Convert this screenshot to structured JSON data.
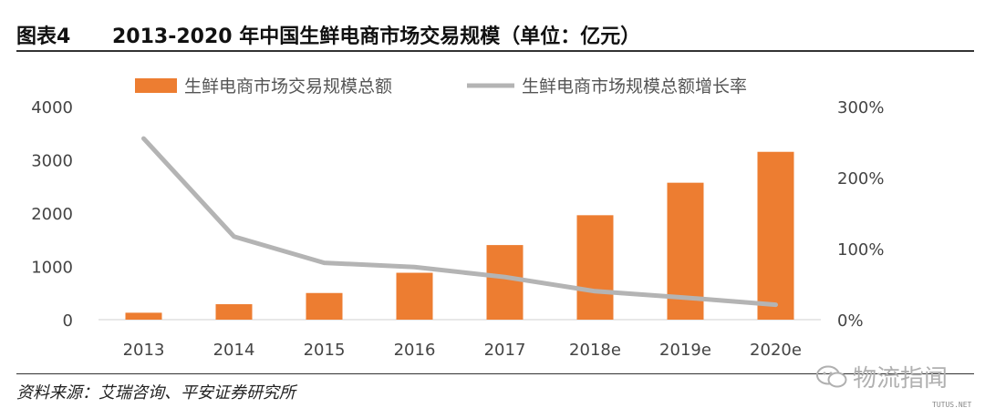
{
  "header": {
    "figure_label": "图表4",
    "title": "2013-2020 年中国生鲜电商市场交易规模（单位：亿元）"
  },
  "chart_data": {
    "type": "bar",
    "categories": [
      "2013",
      "2014",
      "2015",
      "2016",
      "2017",
      "2018e",
      "2019e",
      "2020e"
    ],
    "series": [
      {
        "name": "生鲜电商市场交易规模总额",
        "type": "bar",
        "axis": "left",
        "values": [
          130,
          290,
          500,
          880,
          1400,
          1960,
          2570,
          3150
        ]
      },
      {
        "name": "生鲜电商市场规模总额增长率",
        "type": "line",
        "axis": "right",
        "values": [
          2.55,
          1.17,
          0.8,
          0.74,
          0.6,
          0.4,
          0.31,
          0.21
        ]
      }
    ],
    "left_axis": {
      "ylim": [
        0,
        4000
      ],
      "ticks": [
        "0",
        "1000",
        "2000",
        "3000",
        "4000"
      ]
    },
    "right_axis": {
      "ylim": [
        0,
        3.0
      ],
      "ticks": [
        "0%",
        "100%",
        "200%",
        "300%"
      ]
    },
    "colors": {
      "bar": "#ED7D31",
      "line": "#B4B4B4"
    },
    "legend": "top",
    "grid": false
  },
  "footer": {
    "source": "资料来源：艾瑞咨询、平安证券研究所",
    "watermark": "物流指闻",
    "site_tag": "TUTUS.NET"
  }
}
